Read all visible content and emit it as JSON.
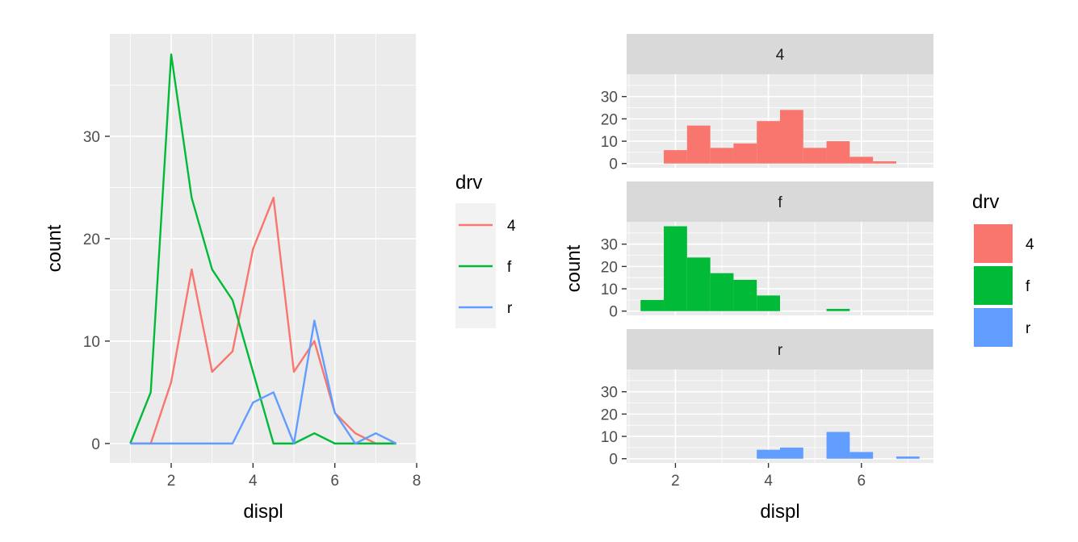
{
  "legend": {
    "title": "drv",
    "keys": [
      "4",
      "f",
      "r"
    ]
  },
  "colors": {
    "4": "#F8766D",
    "f": "#00BA38",
    "r": "#619CFF",
    "panel_bg": "#EBEBEB",
    "grid": "#FFFFFF",
    "strip_bg": "#D9D9D9"
  },
  "chart_data": [
    {
      "type": "line",
      "subtype": "frequency polygon",
      "xlabel": "displ",
      "ylabel": "count",
      "xlim": [
        0.5,
        8
      ],
      "ylim": [
        -1.9,
        40
      ],
      "x_ticks": [
        2,
        4,
        6,
        8
      ],
      "y_ticks": [
        0,
        10,
        20,
        30
      ],
      "grid": true,
      "legend_placement": "right",
      "x": [
        1.0,
        1.5,
        2.0,
        2.5,
        3.0,
        3.5,
        4.0,
        4.5,
        5.0,
        5.5,
        6.0,
        6.5,
        7.0,
        7.5
      ],
      "series": [
        {
          "name": "4",
          "values": [
            0,
            0,
            6,
            17,
            7,
            9,
            19,
            24,
            7,
            10,
            3,
            1,
            0,
            0
          ]
        },
        {
          "name": "f",
          "values": [
            0,
            5,
            38,
            24,
            17,
            14,
            7,
            0,
            0,
            1,
            0,
            0,
            0,
            0
          ]
        },
        {
          "name": "r",
          "values": [
            0,
            0,
            0,
            0,
            0,
            0,
            4,
            5,
            0,
            12,
            3,
            0,
            1,
            0
          ]
        }
      ]
    },
    {
      "type": "bar",
      "subtype": "faceted histogram",
      "xlabel": "displ",
      "ylabel": "count",
      "xlim": [
        0.95,
        7.55
      ],
      "ylim": [
        -1.9,
        40
      ],
      "x_ticks": [
        2,
        4,
        6
      ],
      "y_ticks": [
        0,
        10,
        20,
        30
      ],
      "bin_width": 0.5,
      "grid": true,
      "legend_placement": "right",
      "bin_centers": [
        1.5,
        2.0,
        2.5,
        3.0,
        3.5,
        4.0,
        4.5,
        5.0,
        5.5,
        6.0,
        6.5,
        7.0
      ],
      "panels": [
        {
          "strip": "4",
          "values": [
            0,
            6,
            17,
            7,
            9,
            19,
            24,
            7,
            10,
            3,
            1,
            0
          ]
        },
        {
          "strip": "f",
          "values": [
            5,
            38,
            24,
            17,
            14,
            7,
            0,
            0,
            1,
            0,
            0,
            0
          ]
        },
        {
          "strip": "r",
          "values": [
            0,
            0,
            0,
            0,
            0,
            4,
            5,
            0,
            12,
            3,
            0,
            1
          ]
        }
      ]
    }
  ]
}
